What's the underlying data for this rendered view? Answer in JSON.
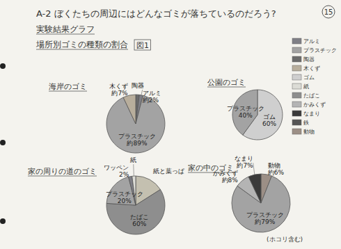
{
  "header": {
    "title": "A-2 ぼくたちの周辺にはどんなゴミが落ちているのだろう?",
    "page": "15",
    "subtitle": "実験結果グラフ",
    "caption": "場所別ゴミの種類の割合",
    "figure": "図1"
  },
  "legend": {
    "items": [
      {
        "name": "アルミ",
        "color": "#7f7f86"
      },
      {
        "name": "プラスチック",
        "color": "#a3a3a3"
      },
      {
        "name": "陶器",
        "color": "#6b6b6b"
      },
      {
        "name": "木くず",
        "color": "#b8ae9c"
      },
      {
        "name": "ゴム",
        "color": "#cfcfcf"
      },
      {
        "name": "紙",
        "color": "#dcdcd6"
      },
      {
        "name": "たばこ",
        "color": "#8e8e8e"
      },
      {
        "name": "かみくず",
        "color": "#b4b4b4"
      },
      {
        "name": "なまり",
        "color": "#3a3a3a"
      },
      {
        "name": "鉄",
        "color": "#555555"
      },
      {
        "name": "動物",
        "color": "#9c8f86"
      }
    ]
  },
  "chart_data": [
    {
      "type": "pie",
      "title": "海岸のゴミ",
      "data_labels": true,
      "categories": [
        "陶器",
        "アルミ",
        "プラスチック",
        "木くず"
      ],
      "values": [
        2,
        2,
        89,
        7
      ],
      "value_labels": [
        null,
        "約2%",
        "約89%",
        "約7%"
      ],
      "colors": [
        "#6b6b6b",
        "#7f7f86",
        "#a3a3a3",
        "#b8ae9c"
      ]
    },
    {
      "type": "pie",
      "title": "公園のゴミ",
      "data_labels": true,
      "categories": [
        "ゴム",
        "プラスチック"
      ],
      "values": [
        60,
        40
      ],
      "value_labels": [
        "60%",
        "40%"
      ],
      "colors": [
        "#cfcfcf",
        "#a3a3a3"
      ]
    },
    {
      "type": "pie",
      "title": "家の周りの道のゴミ",
      "data_labels": true,
      "categories": [
        "紙と葉っぱ",
        "たばこ",
        "プラスチック",
        "ワッペン",
        "紙"
      ],
      "values": [
        16,
        60,
        20,
        2,
        2
      ],
      "value_labels": [
        null,
        "60%",
        "20%",
        "2%",
        null
      ],
      "colors": [
        "#c4c0b0",
        "#8e8e8e",
        "#a3a3a3",
        "#7f7f86",
        "#dcdcd6"
      ]
    },
    {
      "type": "pie",
      "title": "家の中のゴミ",
      "data_labels": true,
      "annotation": "(ホコリ含む)",
      "categories": [
        "動物",
        "プラスチック",
        "かみくず",
        "なまり"
      ],
      "values": [
        6,
        79,
        8,
        7
      ],
      "value_labels": [
        "約6%",
        "約79%",
        "約8%",
        "約7%"
      ],
      "colors": [
        "#9c8f86",
        "#a3a3a3",
        "#b4b4b4",
        "#3a3a3a"
      ]
    }
  ]
}
